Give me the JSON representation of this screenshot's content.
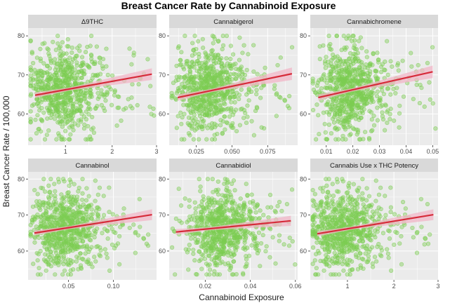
{
  "chart_data": {
    "type": "scatter",
    "title": "Breast Cancer Rate by Cannabinoid Exposure",
    "xlabel": "Cannabinoid Exposure",
    "ylabel": "Breast Cancer Rate / 100,000",
    "ylim": [
      52,
      82
    ],
    "y_ticks": [
      60,
      70,
      80
    ],
    "grid": true,
    "colors": {
      "points": "#7ccd52",
      "trend_line": "#d62b3a",
      "confidence_band": "#f2b5c7",
      "panel_background": "#ebebeb",
      "strip_background": "#d9d9d9",
      "grid": "#ffffff"
    },
    "panels": [
      {
        "name": "Δ9THC",
        "xlim": [
          0.2,
          2.95
        ],
        "x_ticks": [
          1,
          2,
          3
        ],
        "x_tick_labels": [
          "1",
          "2",
          "3"
        ],
        "x_center": 0.8,
        "x_spread": 0.45,
        "trend": {
          "x": [
            0.35,
            2.85
          ],
          "y": [
            64.8,
            70.2
          ]
        },
        "ci_half_width": {
          "start": 0.7,
          "mid": 0.4,
          "end": 1.5
        }
      },
      {
        "name": "Cannabigerol",
        "xlim": [
          0.006,
          0.096
        ],
        "x_ticks": [
          0.025,
          0.05,
          0.075
        ],
        "x_tick_labels": [
          "0.025",
          "0.050",
          "0.075"
        ],
        "x_center": 0.03,
        "x_spread": 0.014,
        "trend": {
          "x": [
            0.012,
            0.092
          ],
          "y": [
            64.2,
            70.3
          ]
        },
        "ci_half_width": {
          "start": 0.8,
          "mid": 0.4,
          "end": 1.6
        }
      },
      {
        "name": "Cannabichromene",
        "xlim": [
          0.004,
          0.052
        ],
        "x_ticks": [
          0.01,
          0.02,
          0.03,
          0.04,
          0.05
        ],
        "x_tick_labels": [
          "0.01",
          "0.02",
          "0.03",
          "0.04",
          "0.05"
        ],
        "x_center": 0.017,
        "x_spread": 0.007,
        "trend": {
          "x": [
            0.007,
            0.05
          ],
          "y": [
            64.2,
            70.8
          ]
        },
        "ci_half_width": {
          "start": 0.8,
          "mid": 0.4,
          "end": 1.6
        }
      },
      {
        "name": "Cannabinol",
        "xlim": [
          0.005,
          0.148
        ],
        "x_ticks": [
          0.05,
          0.1
        ],
        "x_tick_labels": [
          "0.05",
          "0.10"
        ],
        "x_center": 0.04,
        "x_spread": 0.022,
        "trend": {
          "x": [
            0.012,
            0.143
          ],
          "y": [
            65.0,
            70.1
          ]
        },
        "ci_half_width": {
          "start": 0.7,
          "mid": 0.4,
          "end": 1.5
        }
      },
      {
        "name": "Cannabidiol",
        "xlim": [
          0.004,
          0.061
        ],
        "x_ticks": [
          0.02,
          0.04,
          0.06
        ],
        "x_tick_labels": [
          "0.02",
          "0.04",
          "0.06"
        ],
        "x_center": 0.025,
        "x_spread": 0.009,
        "trend": {
          "x": [
            0.007,
            0.058
          ],
          "y": [
            65.3,
            68.4
          ]
        },
        "ci_half_width": {
          "start": 0.8,
          "mid": 0.4,
          "end": 1.4
        }
      },
      {
        "name": "Cannabis Use x THC Potency",
        "xlim": [
          0.2,
          2.95
        ],
        "x_ticks": [
          1,
          2,
          3
        ],
        "x_tick_labels": [
          "1",
          "2",
          "3"
        ],
        "x_center": 0.8,
        "x_spread": 0.45,
        "trend": {
          "x": [
            0.35,
            2.85
          ],
          "y": [
            64.8,
            70.1
          ]
        },
        "ci_half_width": {
          "start": 0.7,
          "mid": 0.4,
          "end": 1.5
        }
      }
    ],
    "points_per_panel": 700,
    "y_center": 66,
    "y_spread": 5.5
  }
}
